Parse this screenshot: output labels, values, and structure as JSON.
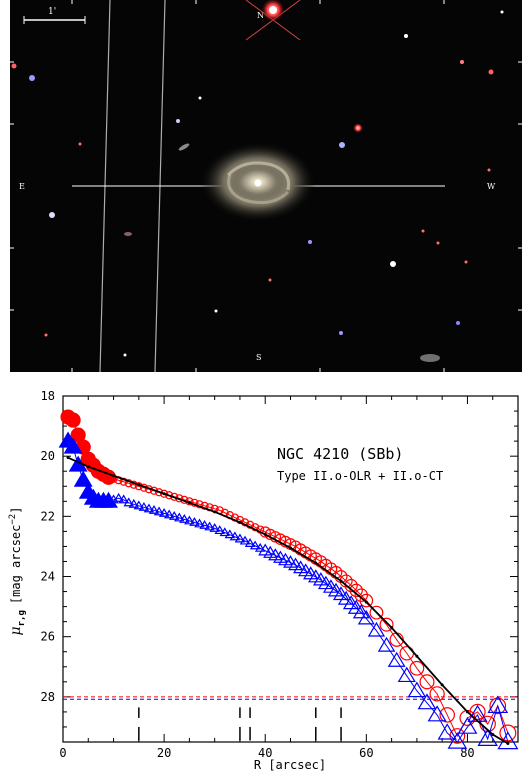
{
  "image_panel": {
    "scale_bar_label": "1'",
    "orientation_labels": {
      "north": "N",
      "east": "E",
      "west": "W",
      "south": "S"
    }
  },
  "chart_data": {
    "type": "scatter",
    "title": "NGC 4210 (SBb)",
    "subtitle": "Type II.o-OLR + II.o-CT",
    "xlabel": "R [arcsec]",
    "ylabel_main": "μ",
    "ylabel_sub": "r,g",
    "ylabel_unit": "[mag arcsec",
    "ylabel_exp": "−2",
    "ylabel_close": "]",
    "xlim": [
      0,
      90
    ],
    "ylim": [
      29.5,
      18
    ],
    "y_inverted": true,
    "x_ticks": [
      0,
      20,
      40,
      60,
      80
    ],
    "y_ticks": [
      18,
      20,
      22,
      24,
      26,
      28
    ],
    "sky_limits": [
      28.0,
      28.08
    ],
    "break_markers_x": [
      15,
      35,
      37,
      50,
      55
    ],
    "colors": {
      "r_band": "#ff0000",
      "g_band": "#0000ff",
      "fit": "#000000"
    },
    "series": [
      {
        "band": "r",
        "marker": "circle",
        "x": [
          1,
          2,
          3,
          4,
          5,
          6,
          7,
          8,
          9,
          10,
          11,
          12,
          13,
          14,
          15,
          16,
          17,
          18,
          19,
          20,
          21,
          22,
          23,
          24,
          25,
          26,
          27,
          28,
          29,
          30,
          31,
          32,
          33,
          34,
          35,
          36,
          37,
          38,
          39,
          40,
          41,
          42,
          43,
          44,
          45,
          46,
          47,
          48,
          49,
          50,
          51,
          52,
          53,
          54,
          55,
          56,
          57,
          58,
          59,
          60,
          62,
          64,
          66,
          68,
          70,
          72,
          74,
          76,
          78,
          80,
          82,
          84,
          86,
          88
        ],
        "y": [
          18.7,
          18.8,
          19.3,
          19.7,
          20.1,
          20.3,
          20.5,
          20.6,
          20.7,
          20.75,
          20.8,
          20.85,
          20.9,
          20.95,
          21.0,
          21.05,
          21.1,
          21.15,
          21.2,
          21.25,
          21.3,
          21.35,
          21.4,
          21.45,
          21.5,
          21.55,
          21.6,
          21.65,
          21.7,
          21.75,
          21.8,
          21.88,
          21.96,
          22.04,
          22.12,
          22.2,
          22.28,
          22.36,
          22.44,
          22.52,
          22.6,
          22.68,
          22.76,
          22.84,
          22.92,
          23.0,
          23.1,
          23.2,
          23.3,
          23.4,
          23.5,
          23.62,
          23.74,
          23.86,
          24.0,
          24.15,
          24.3,
          24.46,
          24.62,
          24.8,
          25.2,
          25.6,
          26.1,
          26.55,
          27.05,
          27.5,
          27.9,
          28.6,
          29.3,
          28.7,
          28.5,
          28.9,
          28.3,
          29.2
        ]
      },
      {
        "band": "g",
        "marker": "triangle",
        "x": [
          1,
          2,
          3,
          4,
          5,
          6,
          7,
          8,
          9,
          10,
          11,
          12,
          13,
          14,
          15,
          16,
          17,
          18,
          19,
          20,
          21,
          22,
          23,
          24,
          25,
          26,
          27,
          28,
          29,
          30,
          31,
          32,
          33,
          34,
          35,
          36,
          37,
          38,
          39,
          40,
          41,
          42,
          43,
          44,
          45,
          46,
          47,
          48,
          49,
          50,
          51,
          52,
          53,
          54,
          55,
          56,
          57,
          58,
          59,
          60,
          62,
          64,
          66,
          68,
          70,
          72,
          74,
          76,
          78,
          80,
          82,
          84,
          86,
          88
        ],
        "y": [
          19.5,
          19.7,
          20.3,
          20.8,
          21.2,
          21.4,
          21.5,
          21.5,
          21.5,
          21.45,
          21.4,
          21.45,
          21.55,
          21.6,
          21.65,
          21.7,
          21.75,
          21.8,
          21.85,
          21.9,
          21.95,
          22.0,
          22.05,
          22.1,
          22.15,
          22.2,
          22.25,
          22.3,
          22.35,
          22.4,
          22.47,
          22.54,
          22.61,
          22.68,
          22.75,
          22.82,
          22.9,
          22.98,
          23.06,
          23.14,
          23.22,
          23.3,
          23.38,
          23.46,
          23.54,
          23.62,
          23.72,
          23.82,
          23.92,
          24.02,
          24.12,
          24.24,
          24.36,
          24.48,
          24.6,
          24.75,
          24.9,
          25.05,
          25.2,
          25.4,
          25.8,
          26.3,
          26.8,
          27.3,
          27.8,
          28.2,
          28.6,
          29.2,
          29.5,
          29.0,
          28.6,
          29.4,
          28.3,
          29.5
        ]
      },
      {
        "band": "fit",
        "marker": "line",
        "x": [
          1,
          5,
          10,
          15,
          20,
          25,
          30,
          35,
          40,
          45,
          50,
          55,
          60,
          65,
          70,
          75,
          80,
          85,
          88
        ],
        "y": [
          20.05,
          20.35,
          20.65,
          20.95,
          21.25,
          21.55,
          21.85,
          22.2,
          22.6,
          23.05,
          23.55,
          24.15,
          24.85,
          25.7,
          26.65,
          27.6,
          28.5,
          29.25,
          29.55
        ]
      }
    ]
  }
}
